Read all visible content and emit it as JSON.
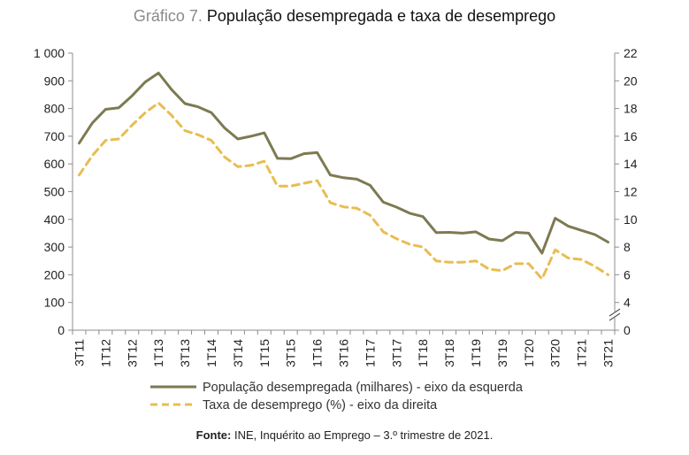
{
  "chart_data": {
    "type": "line",
    "title_prefix": "Gráfico 7.",
    "title": "População desempregada e taxa de desemprego",
    "categories": [
      "3T11",
      "4T11",
      "1T12",
      "2T12",
      "3T12",
      "4T12",
      "1T13",
      "2T13",
      "3T13",
      "4T13",
      "1T14",
      "2T14",
      "3T14",
      "4T14",
      "1T15",
      "2T15",
      "3T15",
      "4T15",
      "1T16",
      "2T16",
      "3T16",
      "4T16",
      "1T17",
      "2T17",
      "3T17",
      "4T17",
      "1T18",
      "2T18",
      "3T18",
      "4T18",
      "1T19",
      "2T19",
      "3T19",
      "4T19",
      "1T20",
      "2T20",
      "3T20",
      "4T20",
      "1T21",
      "2T21",
      "3T21"
    ],
    "x_tick_labels": [
      "3T11",
      "1T12",
      "3T12",
      "1T13",
      "3T13",
      "1T14",
      "3T14",
      "1T15",
      "3T15",
      "1T16",
      "3T16",
      "1T17",
      "3T17",
      "1T18",
      "3T18",
      "1T19",
      "3T19",
      "1T20",
      "3T20",
      "1T21",
      "3T21"
    ],
    "y_left": {
      "ylim": [
        0,
        1000
      ],
      "ticks": [
        "0",
        "100",
        "200",
        "300",
        "400",
        "500",
        "600",
        "700",
        "800",
        "900",
        "1 000"
      ]
    },
    "y_right": {
      "ylim": [
        0,
        22
      ],
      "ticks": [
        "0",
        "4",
        "6",
        "8",
        "10",
        "12",
        "14",
        "16",
        "18",
        "20",
        "22"
      ]
    },
    "series": [
      {
        "name": "População desempregada (milhares) - eixo da esquerda",
        "axis": "left",
        "style": "solid",
        "color": "#7d7a52",
        "values": [
          675,
          748,
          797,
          803,
          846,
          896,
          928,
          868,
          818,
          806,
          785,
          730,
          690,
          700,
          712,
          620,
          619,
          637,
          641,
          560,
          550,
          545,
          523,
          462,
          444,
          422,
          410,
          352,
          353,
          350,
          355,
          329,
          323,
          353,
          350,
          278,
          404,
          375,
          360,
          345,
          318
        ]
      },
      {
        "name": "Taxa de desemprego (%) - eixo da direita",
        "axis": "right",
        "style": "dashed",
        "color": "#e8bd52",
        "values": [
          13.2,
          14.6,
          15.7,
          15.8,
          16.8,
          17.7,
          18.4,
          17.5,
          16.4,
          16.1,
          15.7,
          14.5,
          13.8,
          13.9,
          14.2,
          12.4,
          12.4,
          12.6,
          12.8,
          11.2,
          10.9,
          10.8,
          10.3,
          9.1,
          8.6,
          8.2,
          8.0,
          7.0,
          6.9,
          6.9,
          7.0,
          6.4,
          6.3,
          6.8,
          6.8,
          5.7,
          7.8,
          7.2,
          7.1,
          6.6,
          6.0
        ]
      }
    ]
  },
  "source": {
    "label": "Fonte:",
    "text": "INE, Inquérito ao Emprego – 3.º trimestre de 2021."
  }
}
